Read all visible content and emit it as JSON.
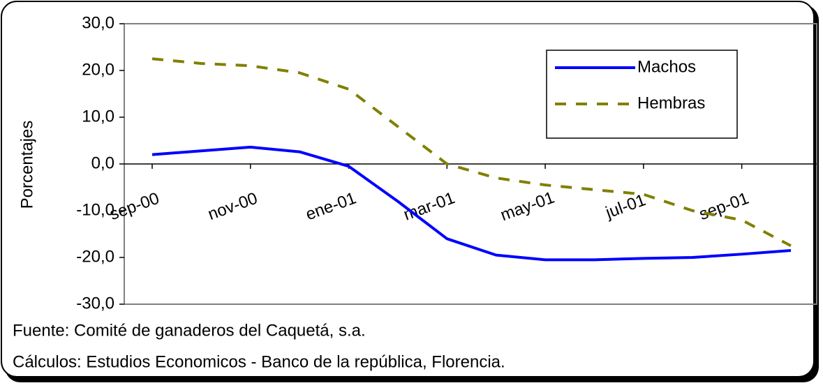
{
  "chart_data": {
    "type": "line",
    "y_label": "Porcentajes",
    "categories": [
      "sep-00",
      null,
      "nov-00",
      null,
      "ene-01",
      null,
      "mar-01",
      null,
      "may-01",
      null,
      "jul-01",
      null,
      "sep-01",
      null
    ],
    "series": [
      {
        "name": "Machos",
        "color": "#0000ff",
        "dash": false,
        "values": [
          2.0,
          2.8,
          3.6,
          2.6,
          -0.5,
          -8.0,
          -16.0,
          -19.5,
          -20.5,
          -20.5,
          -20.2,
          -20.0,
          -19.3,
          -18.5
        ]
      },
      {
        "name": "Hembras",
        "color": "#808000",
        "dash": true,
        "values": [
          22.5,
          21.5,
          21.0,
          19.5,
          16.0,
          8.0,
          0.0,
          -3.0,
          -4.5,
          -5.5,
          -6.5,
          -10.0,
          -12.0,
          -17.5
        ]
      }
    ],
    "ylim": [
      -30,
      30
    ],
    "yticks": [
      {
        "value": -30,
        "label": "-30,0"
      },
      {
        "value": -20,
        "label": "-20,0"
      },
      {
        "value": -10,
        "label": "-10,0"
      },
      {
        "value": 0,
        "label": "0,0"
      },
      {
        "value": 10,
        "label": "10,0"
      },
      {
        "value": 20,
        "label": "20,0"
      },
      {
        "value": 30,
        "label": "30,0"
      }
    ],
    "notes": [
      "Fuente: Comité de ganaderos del Caquetá, s.a.",
      "Cálculos: Estudios Economicos - Banco de la república, Florencia."
    ]
  }
}
